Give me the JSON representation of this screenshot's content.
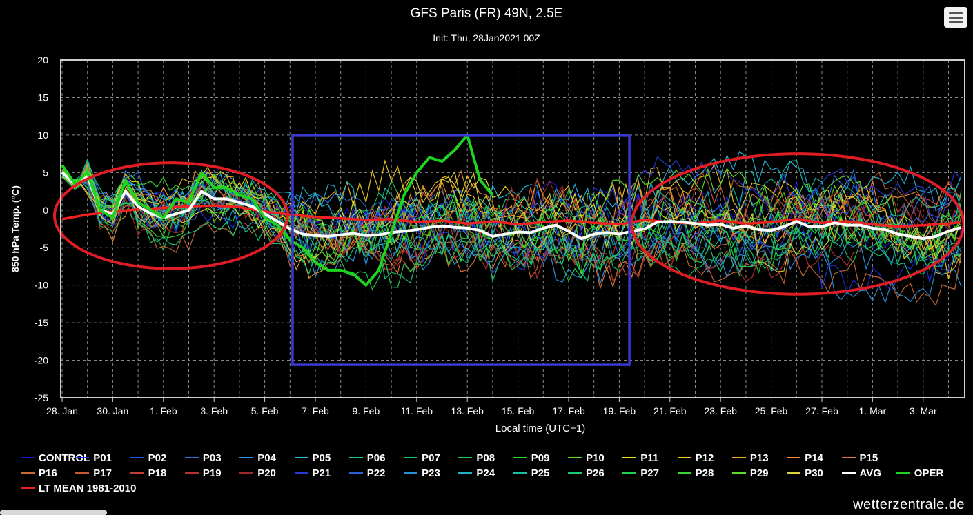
{
  "header": {
    "title": "GFS Paris (FR) 49N, 2.5E",
    "subtitle": "Init: Thu, 28Jan2021 00Z"
  },
  "credit": "wetterzentrale.de",
  "menu_icon": "hamburger-menu-icon",
  "chart_data": {
    "type": "line",
    "title": "GFS Paris (FR) 49N, 2.5E",
    "subtitle": "Init: Thu, 28Jan2021 00Z",
    "xlabel": "Local time (UTC+1)",
    "ylabel": "850 hPa Temp. (°C)",
    "ylim": [
      -25,
      20
    ],
    "yticks": [
      20,
      15,
      10,
      5,
      0,
      -5,
      -10,
      -15,
      -20,
      -25
    ],
    "xlim_days": [
      0,
      35.5
    ],
    "xticks": [
      {
        "day": 0,
        "label": "28. Jan"
      },
      {
        "day": 2,
        "label": "30. Jan"
      },
      {
        "day": 4,
        "label": "1. Feb"
      },
      {
        "day": 6,
        "label": "3. Feb"
      },
      {
        "day": 8,
        "label": "5. Feb"
      },
      {
        "day": 10,
        "label": "7. Feb"
      },
      {
        "day": 12,
        "label": "9. Feb"
      },
      {
        "day": 14,
        "label": "11. Feb"
      },
      {
        "day": 16,
        "label": "13. Feb"
      },
      {
        "day": 18,
        "label": "15. Feb"
      },
      {
        "day": 20,
        "label": "17. Feb"
      },
      {
        "day": 22,
        "label": "19. Feb"
      },
      {
        "day": 24,
        "label": "21. Feb"
      },
      {
        "day": 26,
        "label": "23. Feb"
      },
      {
        "day": 28,
        "label": "25. Feb"
      },
      {
        "day": 30,
        "label": "27. Feb"
      },
      {
        "day": 32,
        "label": "1. Mar"
      },
      {
        "day": 34,
        "label": "3. Mar"
      }
    ],
    "grid": true,
    "legend_position": "bottom",
    "colors": {
      "background": "#000000",
      "grid": "#8a8a8a",
      "frame": "#cfcfcf",
      "annotation_box": "#3a3ad0",
      "annotation_ellipse": "#e01c24"
    },
    "ensemble_members": [
      {
        "name": "CONTROL",
        "color": "#1a1acc"
      },
      {
        "name": "P01",
        "color": "#1c2ee0"
      },
      {
        "name": "P02",
        "color": "#1f55e8"
      },
      {
        "name": "P03",
        "color": "#2878e8"
      },
      {
        "name": "P04",
        "color": "#2a98e8"
      },
      {
        "name": "P05",
        "color": "#22b8e0"
      },
      {
        "name": "P06",
        "color": "#18c890"
      },
      {
        "name": "P07",
        "color": "#16c860"
      },
      {
        "name": "P08",
        "color": "#1ed040"
      },
      {
        "name": "P09",
        "color": "#2ad82a"
      },
      {
        "name": "P10",
        "color": "#52dc22"
      },
      {
        "name": "P11",
        "color": "#f0e020"
      },
      {
        "name": "P12",
        "color": "#f0c820"
      },
      {
        "name": "P13",
        "color": "#f0a828"
      },
      {
        "name": "P14",
        "color": "#f09030"
      },
      {
        "name": "P15",
        "color": "#e07838"
      },
      {
        "name": "P16",
        "color": "#c86a30"
      },
      {
        "name": "P17",
        "color": "#c85a30"
      },
      {
        "name": "P18",
        "color": "#c04038"
      },
      {
        "name": "P19",
        "color": "#b83030"
      },
      {
        "name": "P20",
        "color": "#a02828"
      },
      {
        "name": "P21",
        "color": "#2a38d0"
      },
      {
        "name": "P22",
        "color": "#2a60d8"
      },
      {
        "name": "P23",
        "color": "#2a90d8"
      },
      {
        "name": "P24",
        "color": "#20b0c8"
      },
      {
        "name": "P25",
        "color": "#18c0a0"
      },
      {
        "name": "P26",
        "color": "#18c878"
      },
      {
        "name": "P27",
        "color": "#22d050"
      },
      {
        "name": "P28",
        "color": "#38d830"
      },
      {
        "name": "P29",
        "color": "#58dc28"
      },
      {
        "name": "P30",
        "color": "#d8d040"
      }
    ],
    "avg": {
      "name": "AVG",
      "color": "#ffffff",
      "x": [
        0,
        0.5,
        1,
        1.5,
        2,
        2.5,
        3,
        3.5,
        4,
        4.5,
        5,
        5.5,
        6,
        6.5,
        7,
        7.5,
        8,
        8.5,
        9,
        9.5,
        10,
        10.5,
        11,
        11.5,
        12,
        12.5,
        13,
        13.5,
        14,
        14.5,
        15,
        15.5,
        16,
        16.5,
        17,
        17.5,
        18,
        18.5,
        19,
        19.5,
        20,
        20.5,
        21,
        21.5,
        22,
        22.5,
        23,
        23.5,
        24,
        24.5,
        25,
        25.5,
        26,
        26.5,
        27,
        27.5,
        28,
        28.5,
        29,
        29.5,
        30,
        30.5,
        31,
        31.5,
        32,
        32.5,
        33,
        33.5,
        34,
        34.5,
        35,
        35.5
      ],
      "y": [
        5,
        3.5,
        4.5,
        0,
        -0.5,
        2.5,
        0.5,
        -0.5,
        -1,
        -0.5,
        0,
        2.5,
        1.5,
        1.5,
        1,
        0.5,
        -0.5,
        -1.5,
        -2.5,
        -3.2,
        -3.4,
        -3.5,
        -3.3,
        -3.1,
        -3.4,
        -3.3,
        -3.0,
        -2.8,
        -2.6,
        -2.3,
        -2.1,
        -2.3,
        -2.4,
        -2.7,
        -3.5,
        -3.2,
        -2.9,
        -3.0,
        -2.4,
        -2.0,
        -2.8,
        -3.8,
        -3.2,
        -3.0,
        -3.2,
        -2.8,
        -2.5,
        -1.6,
        -1.5,
        -1.6,
        -1.8,
        -2.0,
        -1.9,
        -2.4,
        -2.1,
        -2.6,
        -2.7,
        -2.2,
        -1.5,
        -2.2,
        -2.2,
        -1.7,
        -2.0,
        -2.0,
        -2.4,
        -2.6,
        -3.2,
        -3.5,
        -3.8,
        -3.5,
        -2.8,
        -2.3
      ]
    },
    "oper": {
      "name": "OPER",
      "color": "#1ed41e",
      "x": [
        0,
        0.5,
        1,
        1.5,
        2,
        2.5,
        3,
        3.5,
        4,
        4.5,
        5,
        5.5,
        6,
        6.5,
        7,
        7.5,
        8,
        8.5,
        9,
        9.5,
        10,
        10.5,
        11,
        11.5,
        12,
        12.5,
        13,
        13.5,
        14,
        14.5,
        15,
        15.5,
        16,
        16.5,
        17
      ],
      "y": [
        6,
        3.5,
        5,
        0,
        -1,
        4,
        1,
        0,
        -1,
        1.5,
        1,
        5,
        3,
        3,
        2,
        1.5,
        -1,
        -2,
        -4,
        -5,
        -7,
        -8,
        -8,
        -8.5,
        -10,
        -8,
        -3,
        2,
        5,
        7,
        6.5,
        8,
        10,
        4,
        2
      ]
    },
    "lt_mean": {
      "name": "LT MEAN 1981-2010",
      "color": "#ee2222",
      "x": [
        0,
        1,
        2,
        3,
        4,
        5,
        6,
        7,
        8,
        9,
        10,
        11,
        12,
        13,
        14,
        15,
        16,
        17,
        18,
        19,
        20,
        21,
        22,
        23,
        24,
        25,
        26,
        27,
        28,
        29,
        30,
        31,
        32,
        33,
        34,
        35,
        35.5
      ],
      "y": [
        -1.2,
        -0.6,
        -0.2,
        0.1,
        0.3,
        0.5,
        0.6,
        0.4,
        -0.2,
        -0.6,
        -0.9,
        -1.1,
        -1.3,
        -1.2,
        -1.6,
        -1.4,
        -1.8,
        -1.5,
        -1.9,
        -1.6,
        -1.4,
        -1.7,
        -1.9,
        -1.3,
        -1.6,
        -1.8,
        -1.4,
        -1.8,
        -1.6,
        -1.2,
        -1.7,
        -1.5,
        -1.9,
        -2.2,
        -2.0,
        -1.8,
        -1.6
      ]
    },
    "annotations": [
      {
        "shape": "ellipse",
        "color": "#e01c24",
        "from_day": -0.3,
        "to_day": 8.9,
        "from_value": 6.3,
        "to_value": -7.8
      },
      {
        "shape": "rectangle",
        "color": "#3a3ad0",
        "from_day": 9.1,
        "to_day": 22.4,
        "from_value": 10,
        "to_value": -20.6
      },
      {
        "shape": "ellipse",
        "color": "#e01c24",
        "from_day": 22.5,
        "to_day": 35.6,
        "from_value": 7.5,
        "to_value": -11.2
      }
    ]
  },
  "legend": {
    "rows": [
      [
        "CONTROL",
        "P01",
        "P02",
        "P03",
        "P04",
        "P05",
        "P06",
        "P07",
        "P08",
        "P09",
        "P10",
        "P11",
        "P12",
        "P13",
        "P14",
        "P15"
      ],
      [
        "P16",
        "P17",
        "P18",
        "P19",
        "P20",
        "P21",
        "P22",
        "P23",
        "P24",
        "P25",
        "P26",
        "P27",
        "P28",
        "P29",
        "P30",
        "AVG",
        "OPER"
      ],
      [
        "LT MEAN 1981-2010"
      ]
    ]
  }
}
